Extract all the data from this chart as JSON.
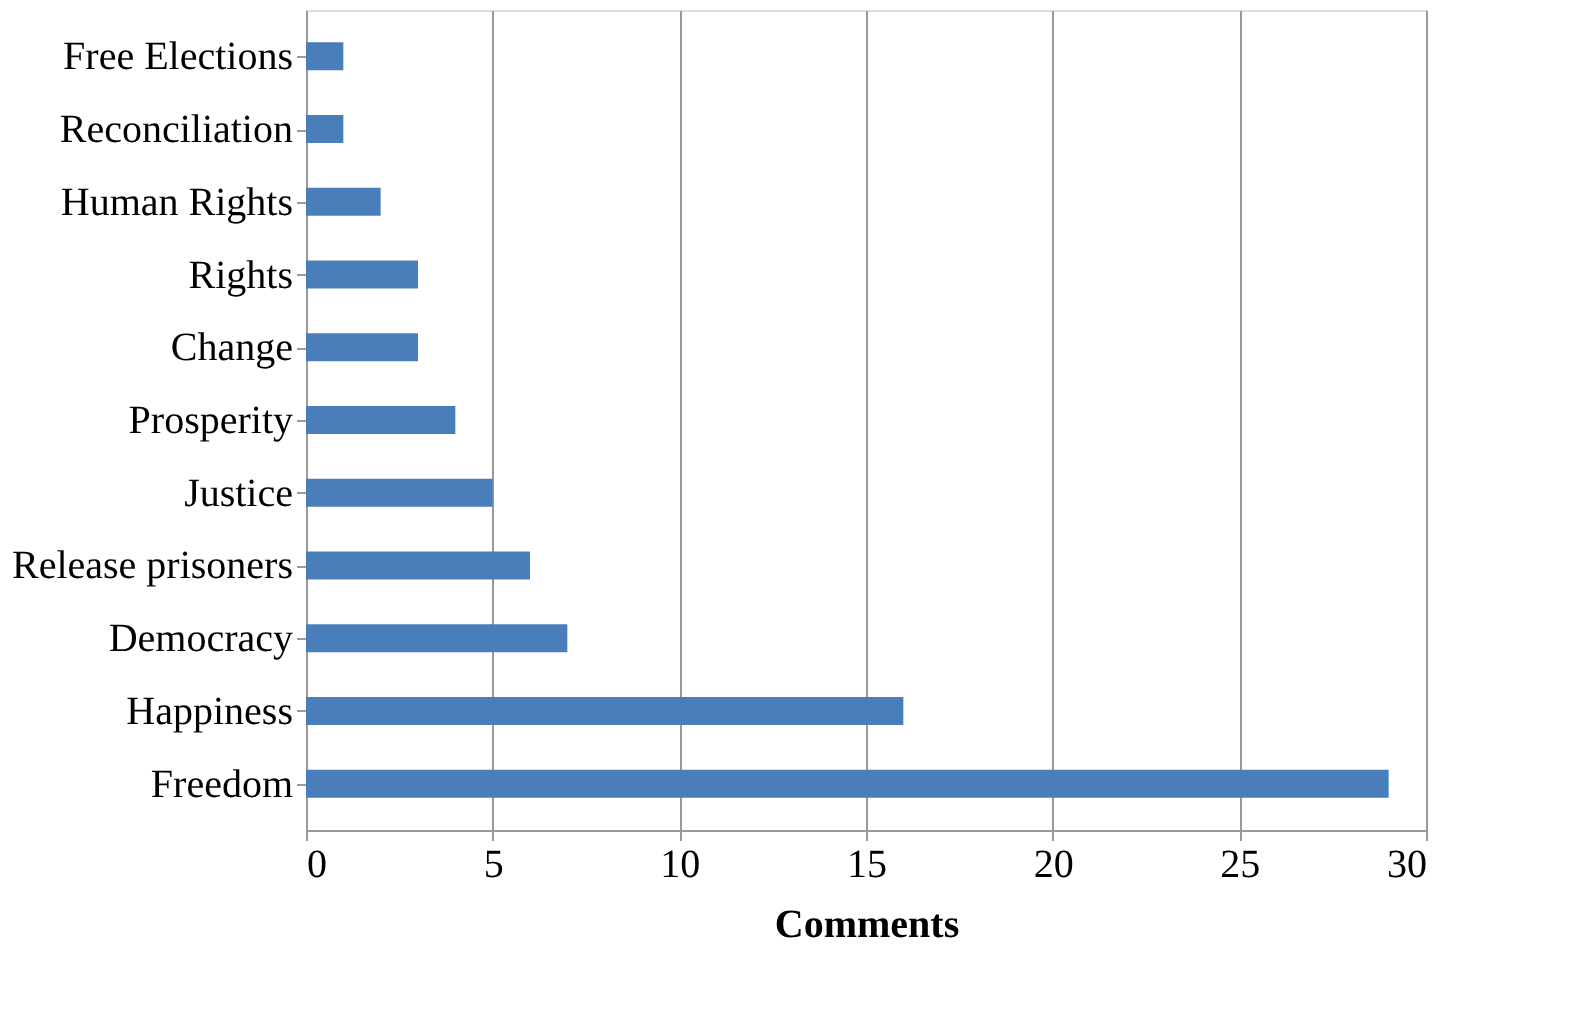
{
  "chart_data": {
    "type": "bar",
    "orientation": "horizontal",
    "xlabel": "Comments",
    "categories": [
      "Free Elections",
      "Reconciliation",
      "Human Rights",
      "Rights",
      "Change",
      "Prosperity",
      "Justice",
      "Release prisoners",
      "Democracy",
      "Happiness",
      "Freedom"
    ],
    "values": [
      1,
      1,
      2,
      3,
      3,
      4,
      5,
      6,
      7,
      16,
      29
    ],
    "color": "#4a7ebb",
    "xlim": [
      0,
      30
    ],
    "xticks": [
      0,
      5,
      10,
      15,
      20,
      25,
      30
    ],
    "grid": "x"
  }
}
